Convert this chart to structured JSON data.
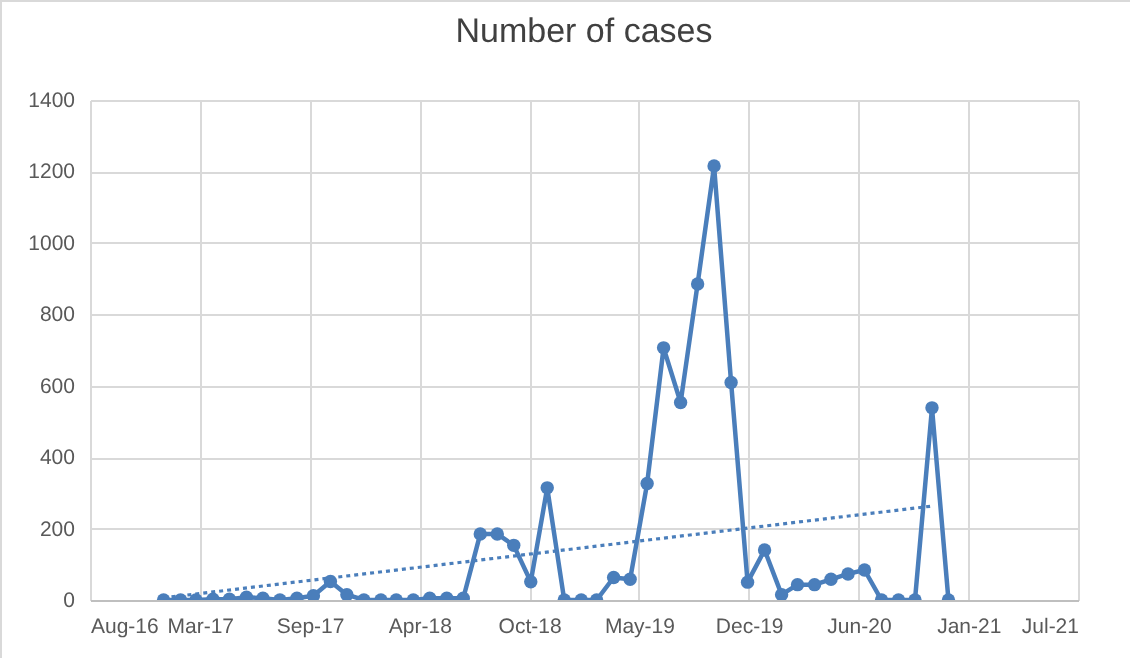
{
  "chart_data": {
    "type": "line",
    "title": "Number of cases",
    "x": [
      "2017-01",
      "2017-02",
      "2017-03",
      "2017-04",
      "2017-05",
      "2017-06",
      "2017-07",
      "2017-08",
      "2017-09",
      "2017-10",
      "2017-11",
      "2017-12",
      "2018-01",
      "2018-02",
      "2018-03",
      "2018-04",
      "2018-05",
      "2018-06",
      "2018-07",
      "2018-08",
      "2018-09",
      "2018-10",
      "2018-11",
      "2018-12",
      "2019-01",
      "2019-02",
      "2019-03",
      "2019-04",
      "2019-05",
      "2019-06",
      "2019-07",
      "2019-08",
      "2019-09",
      "2019-10",
      "2019-11",
      "2019-12",
      "2020-01",
      "2020-02",
      "2020-03",
      "2020-04",
      "2020-05",
      "2020-06",
      "2020-07",
      "2020-08",
      "2020-09",
      "2020-10",
      "2020-11",
      "2020-12"
    ],
    "series": [
      {
        "color": "#4a7ebb",
        "values": [
          0,
          0,
          0,
          2,
          2,
          8,
          5,
          0,
          5,
          12,
          52,
          15,
          0,
          0,
          0,
          0,
          5,
          5,
          5,
          185,
          185,
          153,
          51,
          314,
          0,
          0,
          0,
          63,
          58,
          326,
          706,
          553,
          885,
          1215,
          609,
          50,
          140,
          15,
          43,
          43,
          58,
          73,
          84,
          0,
          0,
          0,
          538,
          0
        ]
      },
      {
        "type": "line",
        "color": "#4a7ebb",
        "line_style": "dotted",
        "marker": "none",
        "x": [
          "2017-01",
          "2020-11"
        ],
        "values": [
          6,
          263
        ]
      }
    ],
    "xlim": [
      "2016-08-20",
      "2021-07-25"
    ],
    "xticks": [
      {
        "value": "2016-08-20",
        "label": "Aug-16"
      },
      {
        "value": "2017-03-08",
        "label": "Mar-17"
      },
      {
        "value": "2017-09-24",
        "label": "Sep-17"
      },
      {
        "value": "2018-04-12",
        "label": "Apr-18"
      },
      {
        "value": "2018-10-29",
        "label": "Oct-18"
      },
      {
        "value": "2019-05-17",
        "label": "May-19"
      },
      {
        "value": "2019-12-03",
        "label": "Dec-19"
      },
      {
        "value": "2020-06-20",
        "label": "Jun-20"
      },
      {
        "value": "2021-01-06",
        "label": "Jan-21"
      },
      {
        "value": "2021-07-25",
        "label": "Jul-21"
      }
    ],
    "ylim": [
      0,
      1400
    ],
    "yticks": [
      0,
      200,
      400,
      600,
      800,
      1000,
      1200,
      1400
    ],
    "grid": true,
    "marker": "circle"
  }
}
